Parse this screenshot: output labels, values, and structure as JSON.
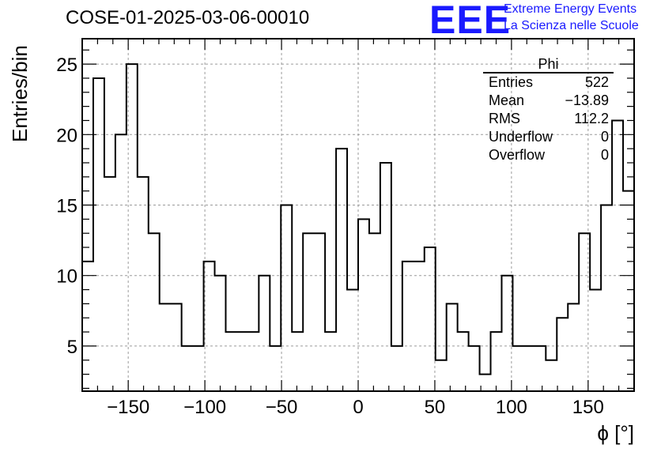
{
  "title": "COSE-01-2025-03-06-00010",
  "logo": {
    "text": "EEE",
    "line1": "Extreme Energy Events",
    "line2": "La Scienza nelle Scuole",
    "color": "#1a1aff"
  },
  "stats": {
    "title": "Phi",
    "rows": [
      {
        "label": "Entries",
        "value": "522"
      },
      {
        "label": "Mean",
        "value": "−13.89"
      },
      {
        "label": "RMS",
        "value": "112.2"
      },
      {
        "label": "Underflow",
        "value": "0"
      },
      {
        "label": "Overflow",
        "value": "0"
      }
    ]
  },
  "chart_data": {
    "type": "histogram",
    "title": "COSE-01-2025-03-06-00010",
    "xlabel": "ϕ [°]",
    "ylabel": "Entries/bin",
    "xlim": [
      -180,
      180
    ],
    "ylim": [
      1.8,
      26.8
    ],
    "bin_width": 7.2,
    "values": [
      11,
      24,
      17,
      20,
      25,
      17,
      13,
      8,
      8,
      5,
      5,
      11,
      10,
      6,
      6,
      6,
      10,
      5,
      15,
      6,
      13,
      13,
      6,
      19,
      9,
      14,
      13,
      18,
      5,
      11,
      11,
      12,
      4,
      8,
      6,
      5,
      3,
      6,
      10,
      5,
      5,
      5,
      4,
      7,
      8,
      13,
      9,
      15,
      21,
      16
    ],
    "xticks": [
      -150,
      -100,
      -50,
      0,
      50,
      100,
      150
    ],
    "xtick_labels": [
      "−150",
      "−100",
      "−50",
      "0",
      "50",
      "100",
      "150"
    ],
    "yticks": [
      5,
      10,
      15,
      20,
      25
    ],
    "ytick_labels": [
      "5",
      "10",
      "15",
      "20",
      "25"
    ],
    "grid": true,
    "legend": "stats box top-right"
  }
}
